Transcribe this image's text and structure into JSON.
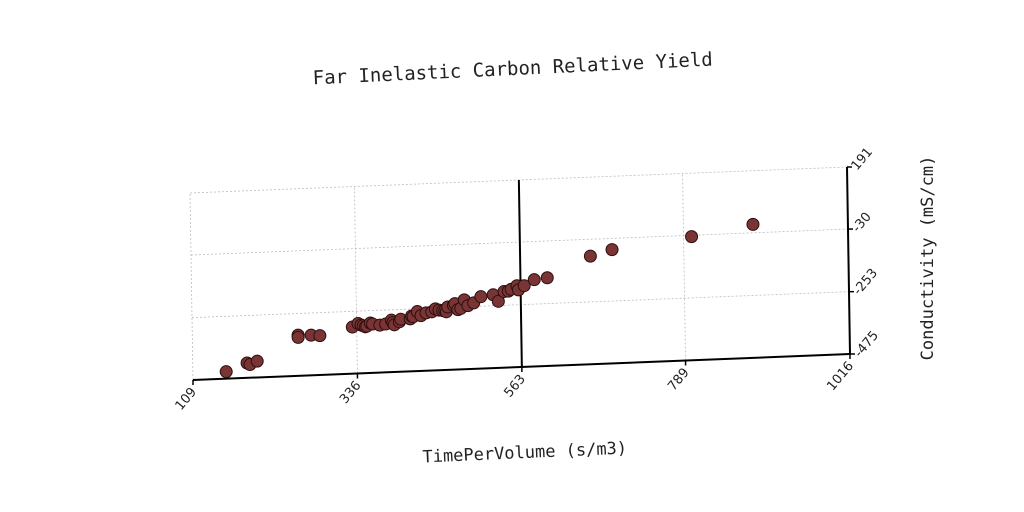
{
  "chart_data": {
    "type": "scatter",
    "title": "Far Inelastic Carbon Relative Yield",
    "xlabel": "TimePerVolume (s/m3)",
    "ylabel": "Conductivity (mS/cm)",
    "xlim": [
      109,
      1016
    ],
    "ylim": [
      -475,
      191
    ],
    "xticks": [
      "109",
      "336",
      "563",
      "789",
      "1016"
    ],
    "yticks": [
      "191",
      "-30",
      "-253",
      "-475"
    ],
    "grid": true,
    "point_color": "#7a3434",
    "series": [
      {
        "x": [
          155,
          184,
          188,
          198,
          255,
          255,
          273,
          285,
          330,
          338,
          342,
          345,
          348,
          350,
          355,
          358,
          368,
          376,
          384,
          386,
          388,
          395,
          397,
          410,
          412,
          414,
          420,
          425,
          432,
          440,
          445,
          450,
          455,
          458,
          460,
          462,
          470,
          472,
          476,
          480,
          485,
          490,
          498,
          508,
          525,
          532,
          540,
          546,
          550,
          558,
          560,
          568,
          582,
          600,
          660,
          690,
          800,
          885
        ],
        "y": [
          -450,
          -422,
          -428,
          -417,
          -330,
          -338,
          -332,
          -335,
          -309,
          -297,
          -303,
          -306,
          -310,
          -308,
          -297,
          -301,
          -306,
          -303,
          -290,
          -299,
          -307,
          -297,
          -288,
          -288,
          -278,
          -281,
          -263,
          -278,
          -269,
          -266,
          -256,
          -261,
          -263,
          -263,
          -268,
          -251,
          -246,
          -240,
          -262,
          -258,
          -228,
          -249,
          -240,
          -219,
          -214,
          -238,
          -204,
          -203,
          -197,
          -185,
          -200,
          -186,
          -166,
          -161,
          -90,
          -70,
          -35,
          0
        ]
      }
    ]
  }
}
